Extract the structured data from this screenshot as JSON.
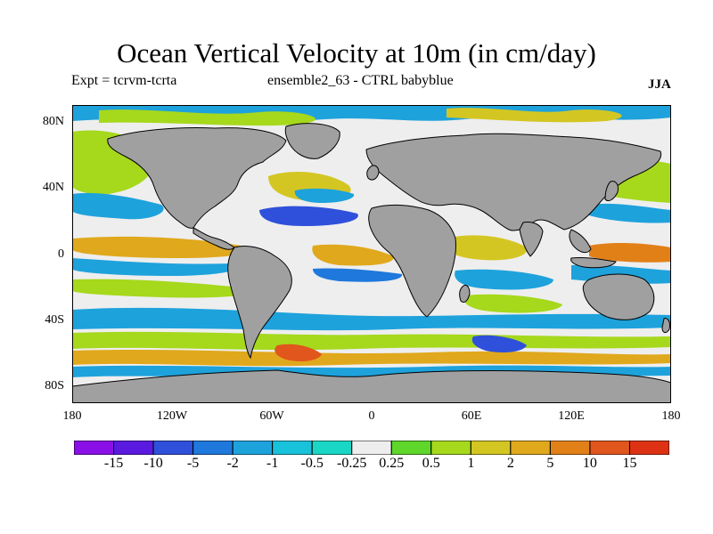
{
  "title": "Ocean Vertical Velocity at 10m (in cm/day)",
  "subtitle_left": "Expt = tcrvm-tcrta",
  "subtitle_center": "ensemble2_63 - CTRL babyblue",
  "season": "JJA",
  "lat_ticks": [
    {
      "label": "80N",
      "value": 80
    },
    {
      "label": "40N",
      "value": 40
    },
    {
      "label": "0",
      "value": 0
    },
    {
      "label": "40S",
      "value": -40
    },
    {
      "label": "80S",
      "value": -80
    }
  ],
  "lon_ticks": [
    {
      "label": "180",
      "value": -180
    },
    {
      "label": "120W",
      "value": -120
    },
    {
      "label": "60W",
      "value": -60
    },
    {
      "label": "0",
      "value": 0
    },
    {
      "label": "60E",
      "value": 60
    },
    {
      "label": "120E",
      "value": 120
    },
    {
      "label": "180",
      "value": 180
    }
  ],
  "colorbar": {
    "colors": [
      "#8b10e8",
      "#5a1ae0",
      "#2f50da",
      "#1f78dc",
      "#1ea2dc",
      "#18c2da",
      "#1ad6c4",
      "#eeeeee",
      "#5ed62a",
      "#a6d81c",
      "#d4c622",
      "#e0a81c",
      "#e28018",
      "#e0561c",
      "#de3214"
    ],
    "labels": [
      "-15",
      "-10",
      "-5",
      "-2",
      "-1",
      "-0.5",
      "-0.25",
      "0.25",
      "0.5",
      "1",
      "2",
      "5",
      "10",
      "15"
    ]
  },
  "colors": {
    "land": "#a0a0a0",
    "ocean_background": "#eeeeee"
  }
}
